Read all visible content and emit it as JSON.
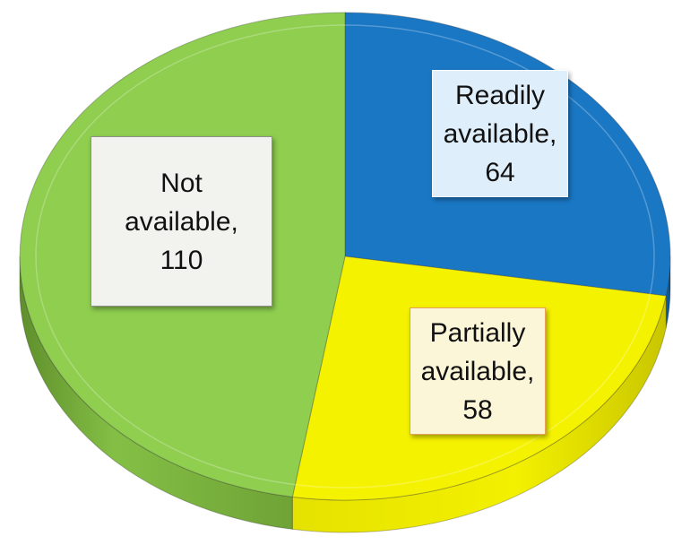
{
  "chart_data": {
    "type": "pie",
    "title": "",
    "style": "3d",
    "categories": [
      "Readily available",
      "Partially available",
      "Not available"
    ],
    "values": [
      64,
      58,
      110
    ],
    "colors": [
      "#1a77c4",
      "#f5f200",
      "#8fce4f"
    ],
    "data_labels": [
      {
        "line1": "Readily",
        "line2": "available,",
        "line3": "64"
      },
      {
        "line1": "Partially",
        "line2": "available,",
        "line3": "58"
      },
      {
        "line1": "Not",
        "line2": "available,",
        "line3": "110"
      }
    ],
    "label_box_colors": {
      "background": [
        "#dfeefb",
        "#fbf6d8",
        "#f2f3ee"
      ],
      "border": [
        "#ffffff",
        "#e8a15a",
        "#8f8f8f"
      ]
    },
    "legend": "none"
  }
}
